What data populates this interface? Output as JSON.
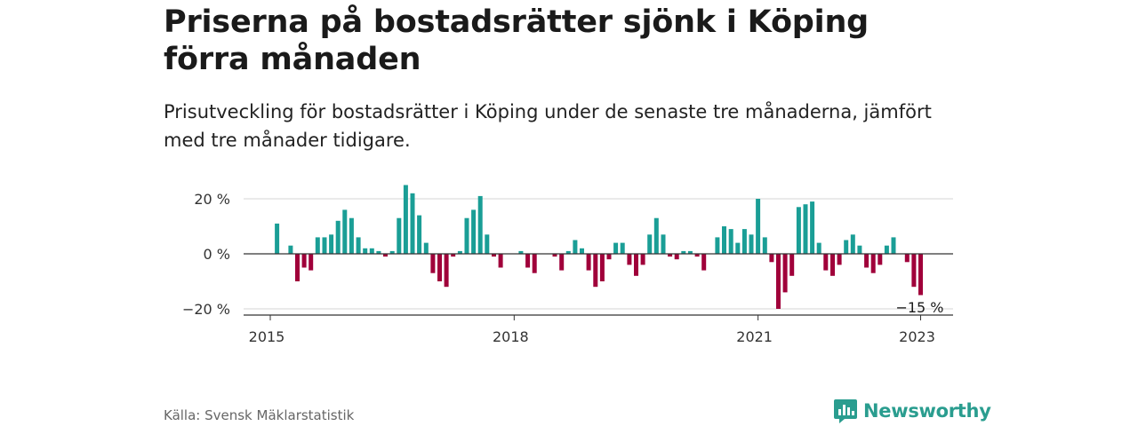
{
  "header": {
    "title": "Priserna på bostadsrätter sjönk i Köping förra månaden",
    "subtitle": "Prisutveckling för bostadsrätter i Köping under de senaste tre månaderna, jämfört med tre månader tidigare."
  },
  "footer": {
    "source": "Källa: Svensk Mäklarstatistik",
    "brand": "Newsworthy",
    "brand_icon": "newsworthy-logo-icon"
  },
  "colors": {
    "positive": "#1a9e96",
    "negative": "#a0003a",
    "brand": "#2a9d8f"
  },
  "chart_data": {
    "type": "bar",
    "title": "Priserna på bostadsrätter sjönk i Köping förra månaden",
    "subtitle": "Prisutveckling för bostadsrätter i Köping under de senaste tre månaderna, jämfört med tre månader tidigare.",
    "y_unit": "%",
    "ylim": [
      -22,
      27
    ],
    "yticks": [
      {
        "value": 20,
        "label": "20 %"
      },
      {
        "value": 0,
        "label": "0 %"
      },
      {
        "value": -20,
        "label": "−20 %"
      }
    ],
    "xticks": [
      {
        "month": "2015-01",
        "label": "2015"
      },
      {
        "month": "2018-01",
        "label": "2018"
      },
      {
        "month": "2021-01",
        "label": "2021"
      },
      {
        "month": "2023-01",
        "label": "2023"
      }
    ],
    "last_label": "−15 %",
    "grid": true,
    "series": [
      {
        "values": [
          {
            "month": "2015-02",
            "value": 11
          },
          {
            "month": "2015-04",
            "value": 3
          },
          {
            "month": "2015-05",
            "value": -10
          },
          {
            "month": "2015-06",
            "value": -5
          },
          {
            "month": "2015-07",
            "value": -6
          },
          {
            "month": "2015-08",
            "value": 6
          },
          {
            "month": "2015-09",
            "value": 6
          },
          {
            "month": "2015-10",
            "value": 7
          },
          {
            "month": "2015-11",
            "value": 12
          },
          {
            "month": "2015-12",
            "value": 16
          },
          {
            "month": "2016-01",
            "value": 13
          },
          {
            "month": "2016-02",
            "value": 6
          },
          {
            "month": "2016-03",
            "value": 2
          },
          {
            "month": "2016-04",
            "value": 2
          },
          {
            "month": "2016-05",
            "value": 1
          },
          {
            "month": "2016-06",
            "value": -1
          },
          {
            "month": "2016-07",
            "value": 1
          },
          {
            "month": "2016-08",
            "value": 13
          },
          {
            "month": "2016-09",
            "value": 25
          },
          {
            "month": "2016-10",
            "value": 22
          },
          {
            "month": "2016-11",
            "value": 14
          },
          {
            "month": "2016-12",
            "value": 4
          },
          {
            "month": "2017-01",
            "value": -7
          },
          {
            "month": "2017-02",
            "value": -10
          },
          {
            "month": "2017-03",
            "value": -12
          },
          {
            "month": "2017-04",
            "value": -1
          },
          {
            "month": "2017-05",
            "value": 1
          },
          {
            "month": "2017-06",
            "value": 13
          },
          {
            "month": "2017-07",
            "value": 16
          },
          {
            "month": "2017-08",
            "value": 21
          },
          {
            "month": "2017-09",
            "value": 7
          },
          {
            "month": "2017-10",
            "value": -1
          },
          {
            "month": "2017-11",
            "value": -5
          },
          {
            "month": "2018-02",
            "value": 1
          },
          {
            "month": "2018-03",
            "value": -5
          },
          {
            "month": "2018-04",
            "value": -7
          },
          {
            "month": "2018-07",
            "value": -1
          },
          {
            "month": "2018-08",
            "value": -6
          },
          {
            "month": "2018-09",
            "value": 1
          },
          {
            "month": "2018-10",
            "value": 5
          },
          {
            "month": "2018-11",
            "value": 2
          },
          {
            "month": "2018-12",
            "value": -6
          },
          {
            "month": "2019-01",
            "value": -12
          },
          {
            "month": "2019-02",
            "value": -10
          },
          {
            "month": "2019-03",
            "value": -2
          },
          {
            "month": "2019-04",
            "value": 4
          },
          {
            "month": "2019-05",
            "value": 4
          },
          {
            "month": "2019-06",
            "value": -4
          },
          {
            "month": "2019-07",
            "value": -8
          },
          {
            "month": "2019-08",
            "value": -4
          },
          {
            "month": "2019-09",
            "value": 7
          },
          {
            "month": "2019-10",
            "value": 13
          },
          {
            "month": "2019-11",
            "value": 7
          },
          {
            "month": "2019-12",
            "value": -1
          },
          {
            "month": "2020-01",
            "value": -2
          },
          {
            "month": "2020-02",
            "value": 1
          },
          {
            "month": "2020-03",
            "value": 1
          },
          {
            "month": "2020-04",
            "value": -1
          },
          {
            "month": "2020-05",
            "value": -6
          },
          {
            "month": "2020-07",
            "value": 6
          },
          {
            "month": "2020-08",
            "value": 10
          },
          {
            "month": "2020-09",
            "value": 9
          },
          {
            "month": "2020-10",
            "value": 4
          },
          {
            "month": "2020-11",
            "value": 9
          },
          {
            "month": "2020-12",
            "value": 7
          },
          {
            "month": "2021-01",
            "value": 20
          },
          {
            "month": "2021-02",
            "value": 6
          },
          {
            "month": "2021-03",
            "value": -3
          },
          {
            "month": "2021-04",
            "value": -20
          },
          {
            "month": "2021-05",
            "value": -14
          },
          {
            "month": "2021-06",
            "value": -8
          },
          {
            "month": "2021-07",
            "value": 17
          },
          {
            "month": "2021-08",
            "value": 18
          },
          {
            "month": "2021-09",
            "value": 19
          },
          {
            "month": "2021-10",
            "value": 4
          },
          {
            "month": "2021-11",
            "value": -6
          },
          {
            "month": "2021-12",
            "value": -8
          },
          {
            "month": "2022-01",
            "value": -4
          },
          {
            "month": "2022-02",
            "value": 5
          },
          {
            "month": "2022-03",
            "value": 7
          },
          {
            "month": "2022-04",
            "value": 3
          },
          {
            "month": "2022-05",
            "value": -5
          },
          {
            "month": "2022-06",
            "value": -7
          },
          {
            "month": "2022-07",
            "value": -4
          },
          {
            "month": "2022-08",
            "value": 3
          },
          {
            "month": "2022-09",
            "value": 6
          },
          {
            "month": "2022-11",
            "value": -3
          },
          {
            "month": "2022-12",
            "value": -12
          },
          {
            "month": "2023-01",
            "value": -15
          }
        ]
      }
    ]
  }
}
